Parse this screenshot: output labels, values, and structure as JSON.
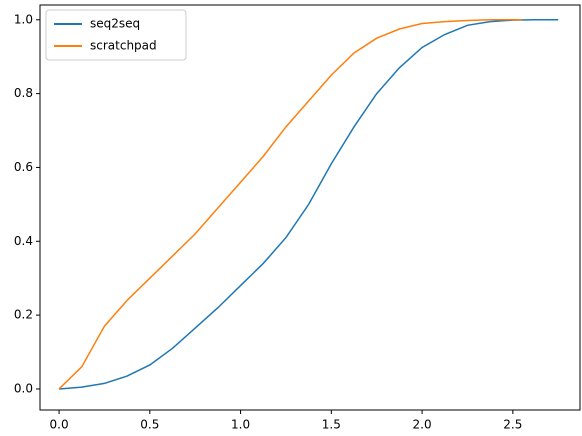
{
  "chart_data": {
    "type": "line",
    "series": [
      {
        "name": "seq2seq",
        "color": "#1f77b4",
        "x": [
          0,
          0.125,
          0.25,
          0.375,
          0.5,
          0.625,
          0.75,
          0.875,
          1.0,
          1.125,
          1.25,
          1.375,
          1.5,
          1.625,
          1.75,
          1.875,
          2.0,
          2.125,
          2.25,
          2.375,
          2.5,
          2.625,
          2.75
        ],
        "values": [
          0,
          0.005,
          0.015,
          0.035,
          0.065,
          0.11,
          0.165,
          0.22,
          0.28,
          0.34,
          0.41,
          0.5,
          0.61,
          0.71,
          0.8,
          0.87,
          0.925,
          0.96,
          0.985,
          0.995,
          0.999,
          1.0,
          1.0
        ]
      },
      {
        "name": "scratchpad",
        "color": "#ff7f0e",
        "x": [
          0,
          0.125,
          0.25,
          0.375,
          0.5,
          0.625,
          0.75,
          0.875,
          1.0,
          1.125,
          1.25,
          1.375,
          1.5,
          1.625,
          1.75,
          1.875,
          2.0,
          2.125,
          2.25,
          2.375,
          2.55
        ],
        "values": [
          0,
          0.06,
          0.17,
          0.24,
          0.3,
          0.36,
          0.42,
          0.49,
          0.56,
          0.63,
          0.71,
          0.78,
          0.85,
          0.91,
          0.95,
          0.975,
          0.99,
          0.995,
          0.998,
          1.0,
          1.0
        ]
      }
    ],
    "xlim": [
      -0.105,
      2.87
    ],
    "ylim": [
      -0.057,
      1.04
    ],
    "xticks": [
      {
        "value": 0,
        "label": "0.0"
      },
      0.5,
      {
        "value": 1,
        "label": "1.0"
      },
      1.5,
      {
        "value": 2,
        "label": "2.0"
      },
      2.5
    ],
    "yticks": [
      {
        "value": 0,
        "label": "0.0"
      },
      0.2,
      0.4,
      0.6,
      0.8,
      {
        "value": 1,
        "label": "1.0"
      }
    ],
    "legend": "upper left"
  }
}
